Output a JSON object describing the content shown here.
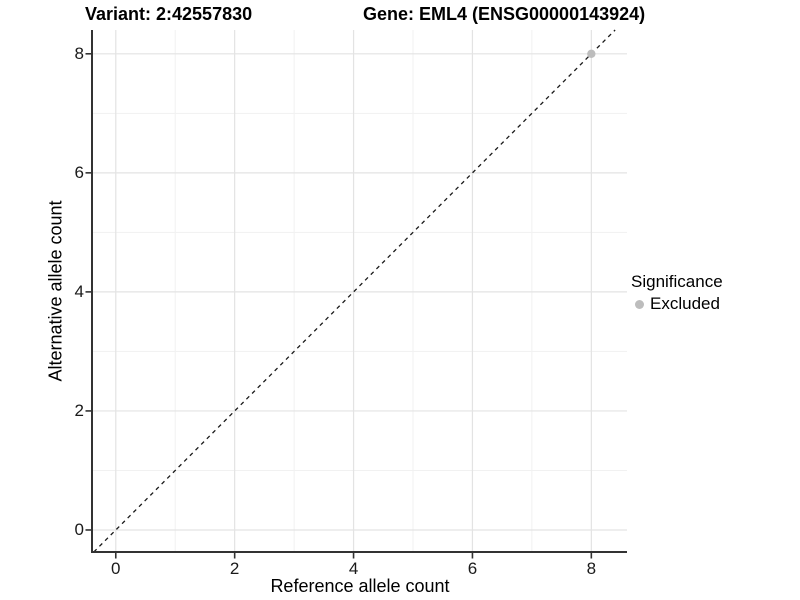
{
  "titles": {
    "variant": "Variant: 2:42557830",
    "gene": "Gene: EML4 (ENSG00000143924)"
  },
  "legend": {
    "title": "Significance",
    "entries": [
      {
        "label": "Excluded",
        "color": "#bdbdbd"
      }
    ]
  },
  "chart_data": {
    "type": "scatter",
    "title": "Variant: 2:42557830   Gene: EML4 (ENSG00000143924)",
    "xlabel": "Reference allele count",
    "ylabel": "Alternative allele count",
    "xlim": [
      -0.4,
      8.6
    ],
    "ylim": [
      -0.37,
      8.4
    ],
    "x_ticks": [
      0,
      2,
      4,
      6,
      8
    ],
    "y_ticks": [
      0,
      2,
      4,
      6,
      8
    ],
    "grid": "on",
    "legend_position": "right",
    "legend_title": "Significance",
    "series": [
      {
        "name": "Excluded",
        "color": "#bdbdbd",
        "points": [
          {
            "x": 8,
            "y": 8
          }
        ]
      }
    ],
    "reference_line": {
      "type": "identity y=x",
      "style": "dashed",
      "color": "#1a1a1a"
    },
    "style_colors": {
      "grid_major": "#e3e3e3",
      "grid_minor": "#f1f1f1",
      "axis_line": "#333333",
      "point": "#bdbdbd",
      "background": "#ffffff"
    }
  }
}
